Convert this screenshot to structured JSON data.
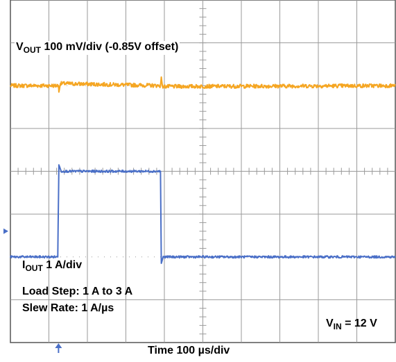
{
  "chart_data": {
    "type": "line",
    "title": "",
    "xlabel": "Time 100 µs/div",
    "divisions": {
      "x": 10,
      "y": 8
    },
    "grid": true,
    "series": [
      {
        "key": "vout",
        "name_main": "V",
        "name_sub": "OUT",
        "scale_text": " 100 mV/div (-0.85V offset)",
        "color": "#f5a623",
        "level_div": 6.0,
        "points": [
          [
            0,
            6.0
          ],
          [
            1.25,
            6.0
          ],
          [
            1.26,
            5.85
          ],
          [
            1.3,
            6.05
          ],
          [
            3.9,
            6.0
          ],
          [
            3.92,
            6.2
          ],
          [
            3.95,
            5.98
          ],
          [
            10,
            6.0
          ]
        ]
      },
      {
        "key": "iout",
        "name_main": "I",
        "name_sub": "OUT",
        "scale_text": " 1 A/div",
        "color": "#4a6fc7",
        "low_div": 2.0,
        "high_div": 4.0,
        "points": [
          [
            0,
            2.0
          ],
          [
            1.23,
            2.0
          ],
          [
            1.26,
            4.15
          ],
          [
            1.32,
            4.0
          ],
          [
            3.9,
            4.0
          ],
          [
            3.92,
            1.85
          ],
          [
            3.97,
            2.0
          ],
          [
            10,
            2.0
          ]
        ]
      }
    ],
    "annotations": {
      "load_step": "Load Step: 1 A to 3 A",
      "slew_rate": "Slew Rate: 1 A/µs",
      "vin_main": "V",
      "vin_sub": "IN",
      "vin_value": " = 12 V"
    },
    "markers": {
      "trigger_x_div": 1.25,
      "ground_level_div": 2.6
    },
    "colors": {
      "grid": "#9a9a9a",
      "border": "#555555",
      "marker": "#4a6fc7"
    }
  }
}
